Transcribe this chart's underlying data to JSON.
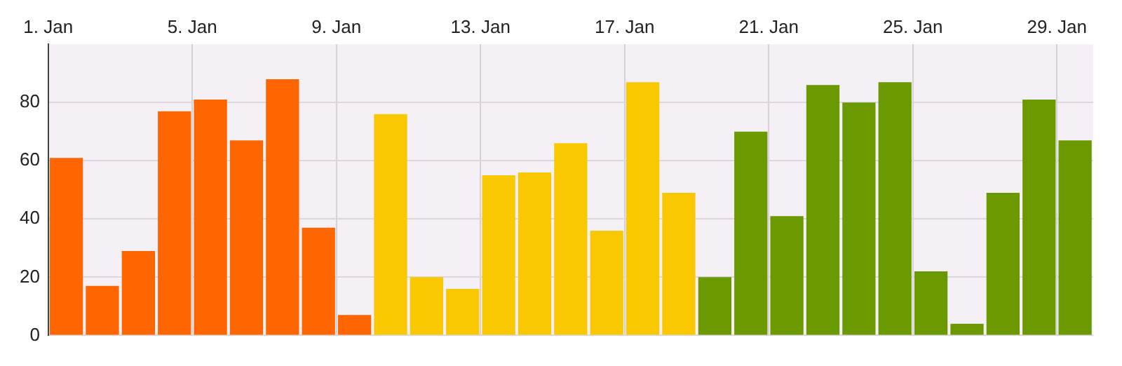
{
  "chart_data": {
    "type": "bar",
    "categories": [
      "1. Jan",
      null,
      null,
      null,
      "5. Jan",
      null,
      null,
      null,
      "9. Jan",
      null,
      null,
      null,
      "13. Jan",
      null,
      null,
      null,
      "17. Jan",
      null,
      null,
      null,
      "21. Jan",
      null,
      null,
      null,
      "25. Jan",
      null,
      null,
      null,
      "29. Jan"
    ],
    "values": [
      61,
      17,
      29,
      77,
      81,
      67,
      88,
      37,
      7,
      76,
      20,
      16,
      55,
      56,
      66,
      36,
      87,
      49,
      20,
      70,
      41,
      86,
      80,
      87,
      22,
      4,
      49,
      81,
      67
    ],
    "colors": [
      "#ff6600",
      "#ff6600",
      "#ff6600",
      "#ff6600",
      "#ff6600",
      "#ff6600",
      "#ff6600",
      "#ff6600",
      "#ff6600",
      "#f9c800",
      "#f9c800",
      "#f9c800",
      "#f9c800",
      "#f9c800",
      "#f9c800",
      "#f9c800",
      "#f9c800",
      "#f9c800",
      "#6a9a00",
      "#6a9a00",
      "#6a9a00",
      "#6a9a00",
      "#6a9a00",
      "#6a9a00",
      "#6a9a00",
      "#6a9a00",
      "#6a9a00",
      "#6a9a00",
      "#6a9a00"
    ],
    "ylim": [
      0,
      100
    ],
    "yticks": [
      0,
      20,
      40,
      60,
      80
    ],
    "grid": true,
    "legend": false
  }
}
